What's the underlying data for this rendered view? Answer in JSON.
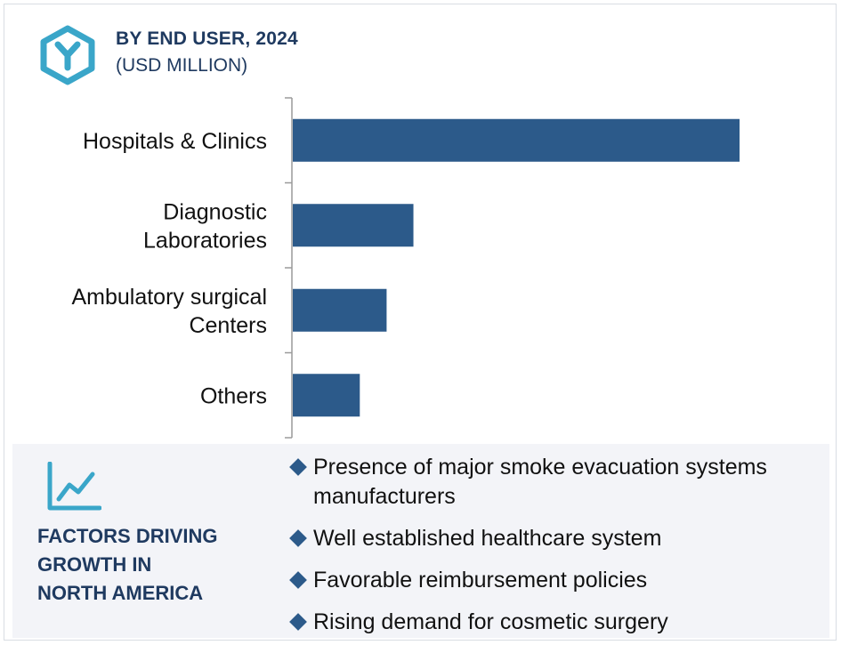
{
  "header": {
    "title": "BY END USER, 2024",
    "subtitle": "(USD MILLION)",
    "icon": "hexagon-y-logo-icon"
  },
  "chart_data": {
    "type": "bar",
    "orientation": "horizontal",
    "title": "BY END USER, 2024",
    "subtitle": "(USD MILLION)",
    "categories": [
      [
        "Hospitals & Clinics"
      ],
      [
        "Diagnostic",
        "Laboratories"
      ],
      [
        "Ambulatory surgical",
        "Centers"
      ],
      [
        "Others"
      ]
    ],
    "values": [
      100,
      27,
      21,
      15
    ],
    "xlim": [
      0,
      100
    ],
    "value_note": "relative values estimated from bar lengths; no axis scale shown",
    "grid": false,
    "bar_color": "#2c5a8a"
  },
  "factors": {
    "icon": "trend-line-chart-icon",
    "title": "FACTORS DRIVING\nGROWTH IN\nNORTH AMERICA",
    "items": [
      "Presence of major smoke evacuation systems manufacturers",
      "Well established healthcare system",
      "Favorable reimbursement policies",
      "Rising demand for cosmetic surgery"
    ]
  },
  "colors": {
    "accent": "#2c5a8a",
    "title": "#1f3a60",
    "logo": "#3aa6c9",
    "panel": "#f3f4f8"
  }
}
